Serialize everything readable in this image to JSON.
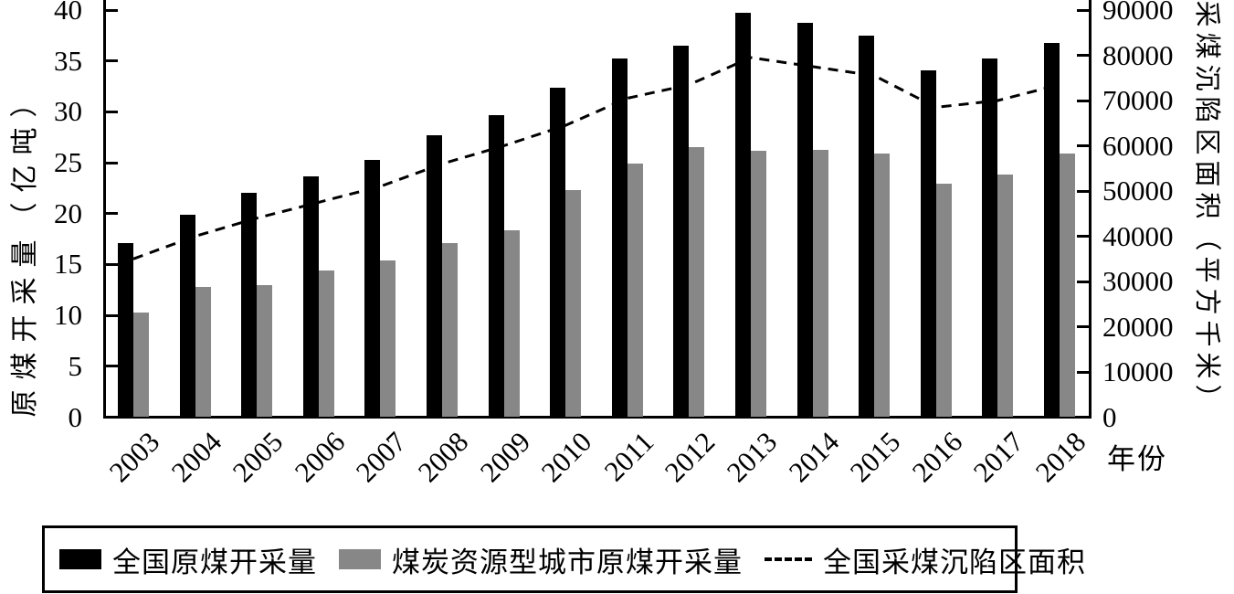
{
  "chart_data": {
    "type": "bar",
    "subtype": "dual-axis bars with dashed line overlay",
    "categories": [
      "2003",
      "2004",
      "2005",
      "2006",
      "2007",
      "2008",
      "2009",
      "2010",
      "2011",
      "2012",
      "2013",
      "2014",
      "2015",
      "2016",
      "2017",
      "2018"
    ],
    "series": [
      {
        "name": "全国原煤开采量",
        "type": "bar",
        "axis": "left",
        "color": "#000000",
        "values": [
          17.1,
          19.9,
          22.0,
          23.7,
          25.3,
          27.7,
          29.7,
          32.4,
          35.2,
          36.5,
          39.7,
          38.7,
          37.5,
          34.1,
          35.2,
          36.8
        ]
      },
      {
        "name": "煤炭资源型城市原煤开采量",
        "type": "bar",
        "axis": "left",
        "color": "#878787",
        "values": [
          10.3,
          12.8,
          13.0,
          14.4,
          15.4,
          17.1,
          18.4,
          22.3,
          24.9,
          26.5,
          26.2,
          26.3,
          25.9,
          22.9,
          23.8,
          25.9
        ]
      },
      {
        "name": "全国采煤沉陷区面积",
        "type": "line",
        "line_style": "dashed",
        "axis": "right",
        "color": "#000000",
        "values": [
          35000,
          40000,
          44000,
          47500,
          51000,
          56000,
          60000,
          64500,
          70500,
          73500,
          79500,
          77500,
          75500,
          68500,
          70000,
          73500
        ]
      }
    ],
    "left_axis": {
      "label": "原煤开采量（亿吨）",
      "min": 0,
      "max": 40,
      "step": 5,
      "ticks": [
        0,
        5,
        10,
        15,
        20,
        25,
        30,
        35,
        40
      ]
    },
    "right_axis": {
      "label": "采煤沉陷区面积（平方千米）",
      "min": 0,
      "max": 90000,
      "step": 10000,
      "ticks": [
        0,
        10000,
        20000,
        30000,
        40000,
        50000,
        60000,
        70000,
        80000,
        90000
      ]
    },
    "x_axis": {
      "label": "年份"
    },
    "grid": false,
    "legend_position": "bottom"
  },
  "legend": {
    "items": [
      {
        "swatch": "black-filled-rect",
        "label": "全国原煤开采量"
      },
      {
        "swatch": "gray-filled-rect",
        "label": "煤炭资源型城市原煤开采量"
      },
      {
        "swatch": "black-dashed-line",
        "label": "全国采煤沉陷区面积"
      }
    ]
  },
  "colors": {
    "bar_national": "#000000",
    "bar_city": "#878787",
    "line": "#000000",
    "background": "#ffffff"
  }
}
